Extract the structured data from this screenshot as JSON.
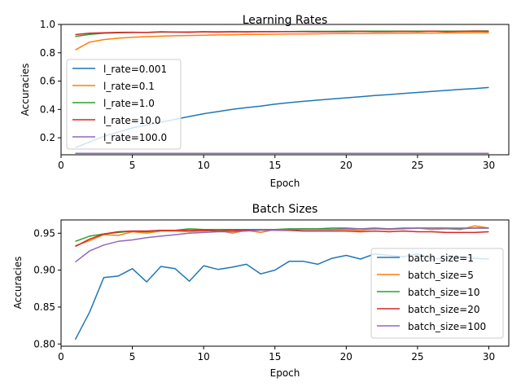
{
  "figure_colors": [
    "#1f77b4",
    "#ff7f0e",
    "#2ca02c",
    "#d62728",
    "#9467bd"
  ],
  "chart_data": [
    {
      "type": "line",
      "title": "Learning Rates",
      "xlabel": "Epoch",
      "ylabel": "Accuracies",
      "xlim": [
        0,
        31.4
      ],
      "ylim": [
        0.08,
        1.0
      ],
      "xticks": [
        0,
        5,
        10,
        15,
        20,
        25,
        30
      ],
      "yticks": [
        0.2,
        0.4,
        0.6,
        0.8,
        1.0
      ],
      "ytick_labels": [
        "0.2",
        "0.4",
        "0.6",
        "0.8",
        "1.0"
      ],
      "legend_position": "center-left",
      "grid": false,
      "x": [
        1,
        2,
        3,
        4,
        5,
        6,
        7,
        8,
        9,
        10,
        11,
        12,
        13,
        14,
        15,
        16,
        17,
        18,
        19,
        20,
        21,
        22,
        23,
        24,
        25,
        26,
        27,
        28,
        29,
        30
      ],
      "series": [
        {
          "name": "l_rate=0.001",
          "color": "#1f77b4",
          "values": [
            0.13,
            0.17,
            0.21,
            0.24,
            0.27,
            0.29,
            0.31,
            0.33,
            0.35,
            0.37,
            0.385,
            0.4,
            0.413,
            0.424,
            0.437,
            0.448,
            0.457,
            0.466,
            0.474,
            0.482,
            0.49,
            0.498,
            0.505,
            0.513,
            0.52,
            0.527,
            0.534,
            0.541,
            0.547,
            0.555
          ]
        },
        {
          "name": "l_rate=0.1",
          "color": "#ff7f0e",
          "values": [
            0.82,
            0.875,
            0.893,
            0.903,
            0.91,
            0.914,
            0.917,
            0.92,
            0.922,
            0.924,
            0.926,
            0.927,
            0.929,
            0.93,
            0.931,
            0.932,
            0.933,
            0.934,
            0.935,
            0.936,
            0.936,
            0.937,
            0.938,
            0.938,
            0.939,
            0.939,
            0.94,
            0.94,
            0.941,
            0.941
          ]
        },
        {
          "name": "l_rate=1.0",
          "color": "#2ca02c",
          "values": [
            0.915,
            0.93,
            0.938,
            0.941,
            0.943,
            0.944,
            0.946,
            0.946,
            0.947,
            0.948,
            0.948,
            0.949,
            0.949,
            0.95,
            0.95,
            0.95,
            0.951,
            0.951,
            0.951,
            0.952,
            0.952,
            0.952,
            0.952,
            0.953,
            0.953,
            0.953,
            0.953,
            0.953,
            0.954,
            0.954
          ]
        },
        {
          "name": "l_rate=10.0",
          "color": "#d62728",
          "values": [
            0.928,
            0.938,
            0.941,
            0.944,
            0.945,
            0.943,
            0.948,
            0.946,
            0.945,
            0.948,
            0.946,
            0.948,
            0.947,
            0.949,
            0.948,
            0.95,
            0.949,
            0.948,
            0.95,
            0.949,
            0.951,
            0.949,
            0.95,
            0.951,
            0.95,
            0.952,
            0.95,
            0.951,
            0.952,
            0.951
          ]
        },
        {
          "name": "l_rate=100.0",
          "color": "#9467bd",
          "values": [
            0.09,
            0.09,
            0.09,
            0.09,
            0.09,
            0.09,
            0.09,
            0.09,
            0.09,
            0.09,
            0.09,
            0.09,
            0.09,
            0.09,
            0.09,
            0.09,
            0.09,
            0.09,
            0.09,
            0.09,
            0.09,
            0.09,
            0.09,
            0.09,
            0.09,
            0.09,
            0.09,
            0.09,
            0.09,
            0.09
          ]
        }
      ]
    },
    {
      "type": "line",
      "title": "Batch Sizes",
      "xlabel": "Epoch",
      "ylabel": "Accuracies",
      "xlim": [
        0,
        31.4
      ],
      "ylim": [
        0.797,
        0.968
      ],
      "xticks": [
        0,
        5,
        10,
        15,
        20,
        25,
        30
      ],
      "yticks": [
        0.8,
        0.85,
        0.9,
        0.95
      ],
      "ytick_labels": [
        "0.80",
        "0.85",
        "0.90",
        "0.95"
      ],
      "legend_position": "center-right",
      "grid": false,
      "x": [
        1,
        2,
        3,
        4,
        5,
        6,
        7,
        8,
        9,
        10,
        11,
        12,
        13,
        14,
        15,
        16,
        17,
        18,
        19,
        20,
        21,
        22,
        23,
        24,
        25,
        26,
        27,
        28,
        29,
        30
      ],
      "series": [
        {
          "name": "batch_size=1",
          "color": "#1f77b4",
          "values": [
            0.806,
            0.843,
            0.89,
            0.892,
            0.902,
            0.884,
            0.905,
            0.902,
            0.885,
            0.906,
            0.901,
            0.904,
            0.908,
            0.895,
            0.9,
            0.912,
            0.912,
            0.908,
            0.916,
            0.92,
            0.915,
            0.922,
            0.92,
            0.918,
            0.922,
            0.915,
            0.916,
            0.918,
            0.916,
            0.915
          ]
        },
        {
          "name": "batch_size=5",
          "color": "#ff7f0e",
          "values": [
            0.933,
            0.94,
            0.948,
            0.947,
            0.952,
            0.95,
            0.953,
            0.953,
            0.952,
            0.953,
            0.954,
            0.95,
            0.954,
            0.951,
            0.955,
            0.955,
            0.956,
            0.955,
            0.955,
            0.955,
            0.954,
            0.956,
            0.955,
            0.956,
            0.957,
            0.955,
            0.956,
            0.955,
            0.96,
            0.957
          ]
        },
        {
          "name": "batch_size=10",
          "color": "#2ca02c",
          "values": [
            0.939,
            0.946,
            0.949,
            0.951,
            0.953,
            0.952,
            0.954,
            0.954,
            0.956,
            0.955,
            0.955,
            0.955,
            0.955,
            0.955,
            0.955,
            0.956,
            0.956,
            0.956,
            0.957,
            0.957,
            0.956,
            0.957,
            0.956,
            0.957,
            0.957,
            0.957,
            0.957,
            0.956,
            0.957,
            0.957
          ]
        },
        {
          "name": "batch_size=20",
          "color": "#d62728",
          "values": [
            0.932,
            0.942,
            0.949,
            0.952,
            0.953,
            0.953,
            0.954,
            0.954,
            0.954,
            0.954,
            0.953,
            0.954,
            0.954,
            0.954,
            0.954,
            0.954,
            0.953,
            0.953,
            0.953,
            0.953,
            0.952,
            0.953,
            0.952,
            0.953,
            0.952,
            0.952,
            0.951,
            0.951,
            0.951,
            0.952
          ]
        },
        {
          "name": "batch_size=100",
          "color": "#9467bd",
          "values": [
            0.911,
            0.926,
            0.934,
            0.939,
            0.941,
            0.944,
            0.946,
            0.948,
            0.95,
            0.951,
            0.952,
            0.952,
            0.953,
            0.954,
            0.954,
            0.955,
            0.955,
            0.955,
            0.955,
            0.956,
            0.956,
            0.956,
            0.956,
            0.956,
            0.957,
            0.957,
            0.957,
            0.957,
            0.957,
            0.957
          ]
        }
      ]
    }
  ]
}
